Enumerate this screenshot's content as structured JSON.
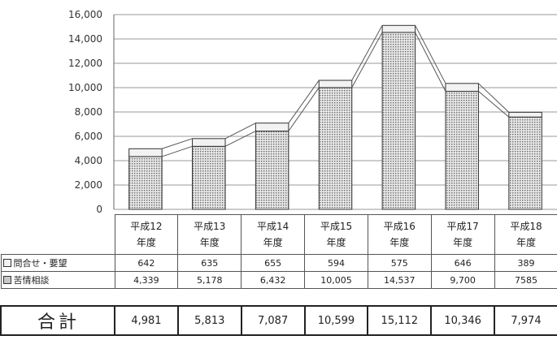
{
  "chart_data": {
    "type": "bar",
    "stacked": true,
    "categories": [
      "平成12\n年度",
      "平成13\n年度",
      "平成14\n年度",
      "平成15\n年度",
      "平成16\n年度",
      "平成17\n年度",
      "平成18\n年度"
    ],
    "series": [
      {
        "name": "苦情相談",
        "values": [
          4339,
          5178,
          6432,
          10005,
          14537,
          9700,
          7585
        ],
        "color": "#c8c8c8"
      },
      {
        "name": "問合せ・要望",
        "values": [
          642,
          635,
          655,
          594,
          575,
          646,
          389
        ],
        "color": "#f2f2f2"
      }
    ],
    "totals_label": "合計",
    "totals": [
      "4,981",
      "5,813",
      "7,087",
      "10,599",
      "15,112",
      "10,346",
      "7,974"
    ],
    "table_rows": [
      {
        "label": "問合せ・要望",
        "values": [
          "642",
          "635",
          "655",
          "594",
          "575",
          "646",
          "389"
        ]
      },
      {
        "label": "苦情相談",
        "values": [
          "4,339",
          "5,178",
          "6,432",
          "10,005",
          "14,537",
          "9,700",
          "7585"
        ]
      }
    ],
    "yticks": [
      "0",
      "2,000",
      "4,000",
      "6,000",
      "8,000",
      "10,000",
      "12,000",
      "14,000",
      "16,000"
    ],
    "ylim": [
      0,
      16000
    ],
    "grid": true,
    "legend": "table-left"
  }
}
